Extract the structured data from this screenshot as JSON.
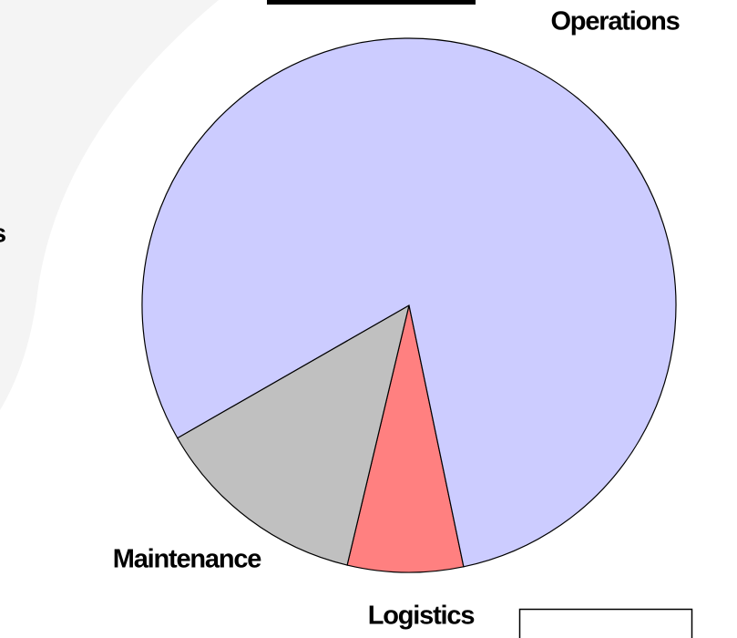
{
  "chart_data": {
    "type": "pie",
    "categories": [
      "Logistics",
      "Maintenance",
      "Operations"
    ],
    "values": [
      7,
      13,
      80
    ],
    "colors": [
      "#ff8080",
      "#c0c0c0",
      "#ccccff"
    ],
    "annotations": [
      "s"
    ]
  }
}
